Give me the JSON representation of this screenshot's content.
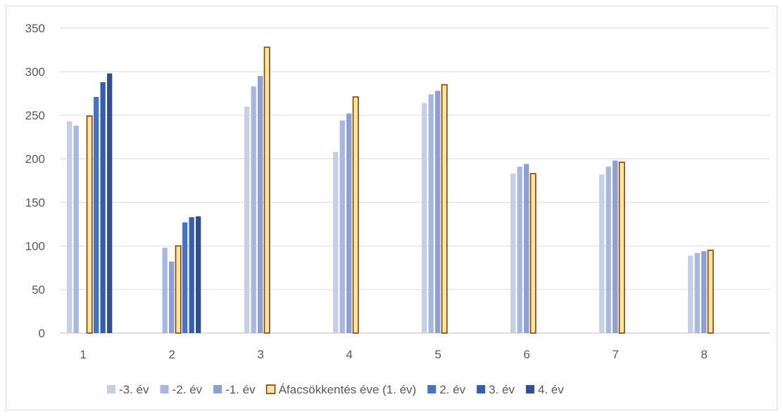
{
  "chart_data": {
    "type": "bar",
    "categories": [
      "1",
      "2",
      "3",
      "4",
      "5",
      "6",
      "7",
      "8"
    ],
    "ylim": [
      0,
      350
    ],
    "yticks": [
      0,
      50,
      100,
      150,
      200,
      250,
      300,
      350
    ],
    "grid": true,
    "legend_position": "bottom",
    "series": [
      {
        "name": "-3. év",
        "color": "#c5cfe7",
        "values": [
          243,
          null,
          260,
          208,
          264,
          183,
          182,
          89
        ]
      },
      {
        "name": "-2. év",
        "color": "#a7b7de",
        "values": [
          238,
          98,
          283,
          244,
          274,
          191,
          191,
          92
        ]
      },
      {
        "name": "-1. év",
        "color": "#8ba0d4",
        "values": [
          null,
          82,
          295,
          252,
          278,
          194,
          198,
          94
        ]
      },
      {
        "name": "Áfacsökkentés éve (1. év)",
        "color": "#ffe699",
        "stroke": "#843c0c",
        "values": [
          249,
          100,
          328,
          271,
          285,
          183,
          196,
          95
        ]
      },
      {
        "name": "2. év",
        "color": "#4472c4",
        "values": [
          271,
          127,
          null,
          null,
          null,
          null,
          null,
          null
        ]
      },
      {
        "name": "3. év",
        "color": "#355fae",
        "values": [
          288,
          133,
          null,
          null,
          null,
          null,
          null,
          null
        ]
      },
      {
        "name": "4. év",
        "color": "#2f4f8f",
        "values": [
          298,
          134,
          null,
          null,
          null,
          null,
          null,
          null
        ]
      }
    ]
  }
}
